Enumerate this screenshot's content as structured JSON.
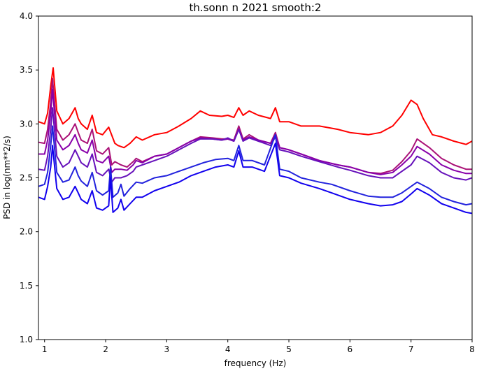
{
  "chart_data": {
    "type": "line",
    "title": "th.sonn n 2021 smooth:2",
    "xlabel": "frequency (Hz)",
    "ylabel": "PSD in log(nm**2/s)",
    "xlim": [
      0.9,
      8.0
    ],
    "ylim": [
      1.0,
      4.0
    ],
    "x_ticks": [
      1,
      2,
      3,
      4,
      5,
      6,
      7,
      8
    ],
    "x_tick_labels": [
      "1",
      "2",
      "3",
      "4",
      "5",
      "6",
      "7",
      "8"
    ],
    "y_ticks": [
      1.0,
      1.5,
      2.0,
      2.5,
      3.0,
      3.5,
      4.0
    ],
    "y_tick_labels": [
      "1.0",
      "1.5",
      "2.0",
      "2.5",
      "3.0",
      "3.5",
      "4.0"
    ],
    "grid": false,
    "series": [
      {
        "color": "#ff0000",
        "x": [
          0.9,
          1.0,
          1.05,
          1.1,
          1.14,
          1.2,
          1.3,
          1.4,
          1.5,
          1.55,
          1.6,
          1.7,
          1.78,
          1.85,
          1.95,
          2.05,
          2.15,
          2.2,
          2.3,
          2.4,
          2.5,
          2.6,
          2.8,
          3.0,
          3.2,
          3.4,
          3.55,
          3.7,
          3.9,
          4.0,
          4.1,
          4.18,
          4.25,
          4.35,
          4.5,
          4.7,
          4.78,
          4.85,
          5.0,
          5.2,
          5.5,
          5.8,
          6.0,
          6.3,
          6.5,
          6.7,
          6.85,
          7.0,
          7.1,
          7.2,
          7.35,
          7.5,
          7.7,
          7.9,
          8.0
        ],
        "y": [
          3.02,
          3.0,
          3.1,
          3.35,
          3.52,
          3.12,
          3.0,
          3.05,
          3.15,
          3.05,
          3.0,
          2.95,
          3.08,
          2.92,
          2.9,
          2.97,
          2.82,
          2.8,
          2.78,
          2.82,
          2.88,
          2.85,
          2.9,
          2.92,
          2.98,
          3.05,
          3.12,
          3.08,
          3.07,
          3.08,
          3.06,
          3.15,
          3.08,
          3.12,
          3.08,
          3.05,
          3.15,
          3.02,
          3.02,
          2.98,
          2.98,
          2.95,
          2.92,
          2.9,
          2.92,
          2.98,
          3.08,
          3.22,
          3.18,
          3.05,
          2.9,
          2.88,
          2.84,
          2.81,
          2.84
        ]
      },
      {
        "color": "#aa1177",
        "x": [
          0.9,
          1.0,
          1.05,
          1.1,
          1.13,
          1.2,
          1.3,
          1.4,
          1.5,
          1.55,
          1.6,
          1.7,
          1.78,
          1.85,
          1.95,
          2.05,
          2.1,
          2.15,
          2.25,
          2.35,
          2.45,
          2.5,
          2.6,
          2.8,
          3.0,
          3.2,
          3.4,
          3.55,
          3.75,
          3.9,
          4.0,
          4.1,
          4.18,
          4.25,
          4.35,
          4.5,
          4.7,
          4.78,
          4.85,
          5.0,
          5.2,
          5.5,
          5.8,
          6.0,
          6.3,
          6.5,
          6.7,
          6.85,
          7.0,
          7.1,
          7.3,
          7.5,
          7.7,
          7.9,
          8.0
        ],
        "y": [
          2.83,
          2.82,
          2.95,
          3.2,
          3.42,
          2.95,
          2.85,
          2.9,
          3.0,
          2.92,
          2.85,
          2.82,
          2.95,
          2.75,
          2.72,
          2.78,
          2.62,
          2.65,
          2.62,
          2.6,
          2.65,
          2.68,
          2.65,
          2.7,
          2.72,
          2.78,
          2.84,
          2.88,
          2.87,
          2.86,
          2.86,
          2.85,
          2.98,
          2.86,
          2.9,
          2.85,
          2.82,
          2.92,
          2.78,
          2.76,
          2.72,
          2.66,
          2.62,
          2.6,
          2.55,
          2.54,
          2.57,
          2.65,
          2.75,
          2.86,
          2.78,
          2.68,
          2.62,
          2.58,
          2.58
        ]
      },
      {
        "color": "#8800aa",
        "x": [
          0.9,
          1.0,
          1.05,
          1.1,
          1.13,
          1.2,
          1.3,
          1.4,
          1.5,
          1.55,
          1.6,
          1.7,
          1.78,
          1.85,
          1.95,
          2.05,
          2.1,
          2.15,
          2.25,
          2.35,
          2.45,
          2.5,
          2.6,
          2.8,
          3.0,
          3.2,
          3.4,
          3.55,
          3.75,
          3.9,
          4.0,
          4.1,
          4.18,
          4.25,
          4.35,
          4.5,
          4.7,
          4.78,
          4.85,
          5.0,
          5.2,
          5.5,
          5.8,
          6.0,
          6.3,
          6.5,
          6.7,
          6.85,
          7.0,
          7.1,
          7.3,
          7.5,
          7.7,
          7.9,
          8.0
        ],
        "y": [
          2.72,
          2.72,
          2.85,
          3.1,
          3.32,
          2.85,
          2.76,
          2.8,
          2.9,
          2.82,
          2.76,
          2.73,
          2.85,
          2.66,
          2.64,
          2.7,
          2.55,
          2.58,
          2.58,
          2.57,
          2.62,
          2.66,
          2.64,
          2.7,
          2.72,
          2.78,
          2.84,
          2.87,
          2.86,
          2.85,
          2.86,
          2.84,
          2.95,
          2.85,
          2.88,
          2.85,
          2.82,
          2.9,
          2.78,
          2.76,
          2.72,
          2.66,
          2.62,
          2.6,
          2.55,
          2.53,
          2.55,
          2.62,
          2.7,
          2.79,
          2.72,
          2.62,
          2.57,
          2.54,
          2.54
        ]
      },
      {
        "color": "#6611bb",
        "x": [
          0.9,
          1.0,
          1.05,
          1.1,
          1.13,
          1.2,
          1.3,
          1.4,
          1.5,
          1.55,
          1.6,
          1.7,
          1.78,
          1.85,
          1.95,
          2.05,
          2.1,
          2.15,
          2.25,
          2.35,
          2.45,
          2.5,
          2.6,
          2.8,
          3.0,
          3.2,
          3.4,
          3.55,
          3.75,
          3.9,
          4.0,
          4.1,
          4.18,
          4.25,
          4.35,
          4.5,
          4.7,
          4.78,
          4.85,
          5.0,
          5.2,
          5.5,
          5.8,
          6.0,
          6.3,
          6.5,
          6.7,
          6.85,
          7.0,
          7.1,
          7.3,
          7.5,
          7.7,
          7.9,
          8.0
        ],
        "y": [
          2.58,
          2.57,
          2.7,
          2.95,
          3.15,
          2.7,
          2.6,
          2.64,
          2.76,
          2.7,
          2.64,
          2.6,
          2.72,
          2.55,
          2.52,
          2.58,
          2.46,
          2.5,
          2.5,
          2.52,
          2.56,
          2.6,
          2.62,
          2.66,
          2.7,
          2.76,
          2.82,
          2.86,
          2.86,
          2.85,
          2.87,
          2.84,
          2.95,
          2.84,
          2.87,
          2.84,
          2.8,
          2.88,
          2.76,
          2.74,
          2.7,
          2.65,
          2.6,
          2.57,
          2.52,
          2.5,
          2.5,
          2.56,
          2.62,
          2.7,
          2.64,
          2.55,
          2.5,
          2.48,
          2.5
        ]
      },
      {
        "color": "#2222dd",
        "x": [
          0.9,
          1.0,
          1.05,
          1.1,
          1.13,
          1.2,
          1.3,
          1.4,
          1.5,
          1.55,
          1.6,
          1.7,
          1.78,
          1.85,
          1.95,
          2.05,
          2.08,
          2.12,
          2.2,
          2.25,
          2.3,
          2.4,
          2.5,
          2.6,
          2.8,
          3.0,
          3.2,
          3.4,
          3.6,
          3.8,
          4.0,
          4.1,
          4.18,
          4.25,
          4.4,
          4.6,
          4.78,
          4.85,
          5.0,
          5.2,
          5.5,
          5.7,
          6.0,
          6.3,
          6.5,
          6.7,
          6.85,
          7.0,
          7.1,
          7.3,
          7.5,
          7.7,
          7.9,
          8.0
        ],
        "y": [
          2.42,
          2.44,
          2.55,
          2.8,
          2.98,
          2.55,
          2.46,
          2.48,
          2.6,
          2.52,
          2.47,
          2.42,
          2.55,
          2.38,
          2.34,
          2.38,
          2.6,
          2.32,
          2.36,
          2.44,
          2.33,
          2.4,
          2.46,
          2.45,
          2.5,
          2.52,
          2.56,
          2.6,
          2.64,
          2.67,
          2.68,
          2.66,
          2.8,
          2.66,
          2.66,
          2.62,
          2.9,
          2.58,
          2.56,
          2.5,
          2.46,
          2.44,
          2.38,
          2.33,
          2.32,
          2.32,
          2.36,
          2.42,
          2.46,
          2.4,
          2.32,
          2.28,
          2.25,
          2.26
        ]
      },
      {
        "color": "#1100ee",
        "x": [
          0.9,
          1.0,
          1.05,
          1.1,
          1.13,
          1.2,
          1.3,
          1.4,
          1.5,
          1.55,
          1.6,
          1.7,
          1.78,
          1.85,
          1.95,
          2.05,
          2.08,
          2.12,
          2.2,
          2.25,
          2.3,
          2.4,
          2.5,
          2.6,
          2.8,
          3.0,
          3.2,
          3.4,
          3.6,
          3.8,
          4.0,
          4.1,
          4.18,
          4.25,
          4.4,
          4.6,
          4.78,
          4.85,
          5.0,
          5.2,
          5.5,
          5.7,
          6.0,
          6.3,
          6.5,
          6.7,
          6.85,
          7.0,
          7.1,
          7.3,
          7.5,
          7.7,
          7.9,
          8.0
        ],
        "y": [
          2.32,
          2.3,
          2.42,
          2.6,
          2.8,
          2.4,
          2.3,
          2.32,
          2.42,
          2.36,
          2.3,
          2.26,
          2.38,
          2.22,
          2.2,
          2.24,
          2.5,
          2.18,
          2.22,
          2.3,
          2.2,
          2.26,
          2.32,
          2.32,
          2.38,
          2.42,
          2.46,
          2.52,
          2.56,
          2.6,
          2.62,
          2.6,
          2.75,
          2.6,
          2.6,
          2.56,
          2.82,
          2.52,
          2.5,
          2.45,
          2.4,
          2.36,
          2.3,
          2.26,
          2.24,
          2.25,
          2.28,
          2.35,
          2.4,
          2.34,
          2.26,
          2.22,
          2.18,
          2.17
        ]
      }
    ]
  }
}
